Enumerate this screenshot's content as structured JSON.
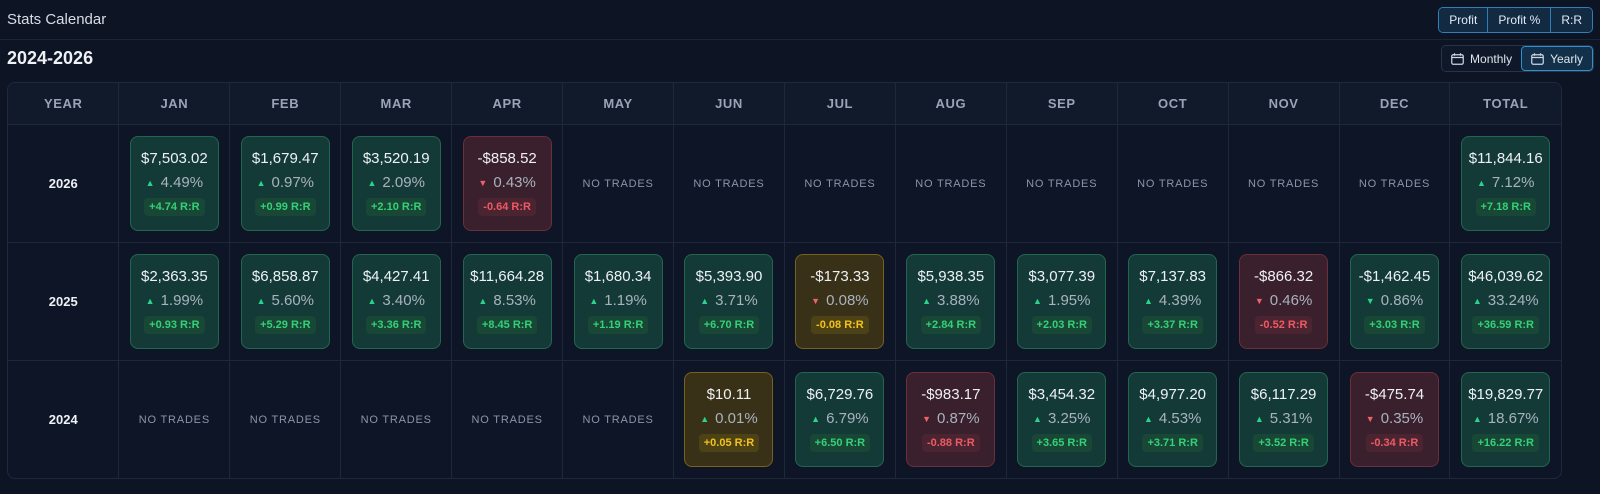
{
  "app": {
    "title": "Stats Calendar"
  },
  "metric_toggle": [
    "Profit",
    "Profit %",
    "R:R"
  ],
  "range_title": "2024-2026",
  "period_toggle": {
    "monthly": "Monthly",
    "yearly": "Yearly"
  },
  "headers": [
    "YEAR",
    "JAN",
    "FEB",
    "MAR",
    "APR",
    "MAY",
    "JUN",
    "JUL",
    "AUG",
    "SEP",
    "OCT",
    "NOV",
    "DEC",
    "TOTAL"
  ],
  "no_trades_label": "NO TRADES",
  "rr_suffix": "R:R",
  "colors": {
    "positive": "#34d178",
    "negative": "#ef5a62",
    "breakeven": "#f2c21d",
    "accent": "#2f8fd0"
  },
  "rows": [
    {
      "year": "2026",
      "cells": [
        {
          "amount": "$7,503.02",
          "pct": "4.49%",
          "rr": "+4.74",
          "tone": "pos",
          "dir": "up"
        },
        {
          "amount": "$1,679.47",
          "pct": "0.97%",
          "rr": "+0.99",
          "tone": "pos",
          "dir": "up"
        },
        {
          "amount": "$3,520.19",
          "pct": "2.09%",
          "rr": "+2.10",
          "tone": "pos",
          "dir": "up"
        },
        {
          "amount": "-$858.52",
          "pct": "0.43%",
          "rr": "-0.64",
          "tone": "neg",
          "dir": "down"
        },
        null,
        null,
        null,
        null,
        null,
        null,
        null,
        null,
        {
          "amount": "$11,844.16",
          "pct": "7.12%",
          "rr": "+7.18",
          "tone": "pos",
          "dir": "up"
        }
      ]
    },
    {
      "year": "2025",
      "cells": [
        {
          "amount": "$2,363.35",
          "pct": "1.99%",
          "rr": "+0.93",
          "tone": "pos",
          "dir": "up"
        },
        {
          "amount": "$6,858.87",
          "pct": "5.60%",
          "rr": "+5.29",
          "tone": "pos",
          "dir": "up"
        },
        {
          "amount": "$4,427.41",
          "pct": "3.40%",
          "rr": "+3.36",
          "tone": "pos",
          "dir": "up"
        },
        {
          "amount": "$11,664.28",
          "pct": "8.53%",
          "rr": "+8.45",
          "tone": "pos",
          "dir": "up"
        },
        {
          "amount": "$1,680.34",
          "pct": "1.19%",
          "rr": "+1.19",
          "tone": "pos",
          "dir": "up"
        },
        {
          "amount": "$5,393.90",
          "pct": "3.71%",
          "rr": "+6.70",
          "tone": "pos",
          "dir": "up"
        },
        {
          "amount": "-$173.33",
          "pct": "0.08%",
          "rr": "-0.08",
          "tone": "warn",
          "dir": "down"
        },
        {
          "amount": "$5,938.35",
          "pct": "3.88%",
          "rr": "+2.84",
          "tone": "pos",
          "dir": "up"
        },
        {
          "amount": "$3,077.39",
          "pct": "1.95%",
          "rr": "+2.03",
          "tone": "pos",
          "dir": "up"
        },
        {
          "amount": "$7,137.83",
          "pct": "4.39%",
          "rr": "+3.37",
          "tone": "pos",
          "dir": "up"
        },
        {
          "amount": "-$866.32",
          "pct": "0.46%",
          "rr": "-0.52",
          "tone": "neg",
          "dir": "down"
        },
        {
          "amount": "-$1,462.45",
          "pct": "0.86%",
          "rr": "+3.03",
          "tone": "pos",
          "dir": "down"
        },
        {
          "amount": "$46,039.62",
          "pct": "33.24%",
          "rr": "+36.59",
          "tone": "pos",
          "dir": "up"
        }
      ]
    },
    {
      "year": "2024",
      "cells": [
        null,
        null,
        null,
        null,
        null,
        {
          "amount": "$10.11",
          "pct": "0.01%",
          "rr": "+0.05",
          "tone": "warn",
          "dir": "up"
        },
        {
          "amount": "$6,729.76",
          "pct": "6.79%",
          "rr": "+6.50",
          "tone": "pos",
          "dir": "up"
        },
        {
          "amount": "-$983.17",
          "pct": "0.87%",
          "rr": "-0.88",
          "tone": "neg",
          "dir": "down"
        },
        {
          "amount": "$3,454.32",
          "pct": "3.25%",
          "rr": "+3.65",
          "tone": "pos",
          "dir": "up"
        },
        {
          "amount": "$4,977.20",
          "pct": "4.53%",
          "rr": "+3.71",
          "tone": "pos",
          "dir": "up"
        },
        {
          "amount": "$6,117.29",
          "pct": "5.31%",
          "rr": "+3.52",
          "tone": "pos",
          "dir": "up"
        },
        {
          "amount": "-$475.74",
          "pct": "0.35%",
          "rr": "-0.34",
          "tone": "neg",
          "dir": "down"
        },
        {
          "amount": "$19,829.77",
          "pct": "18.67%",
          "rr": "+16.22",
          "tone": "pos",
          "dir": "up"
        }
      ]
    }
  ]
}
